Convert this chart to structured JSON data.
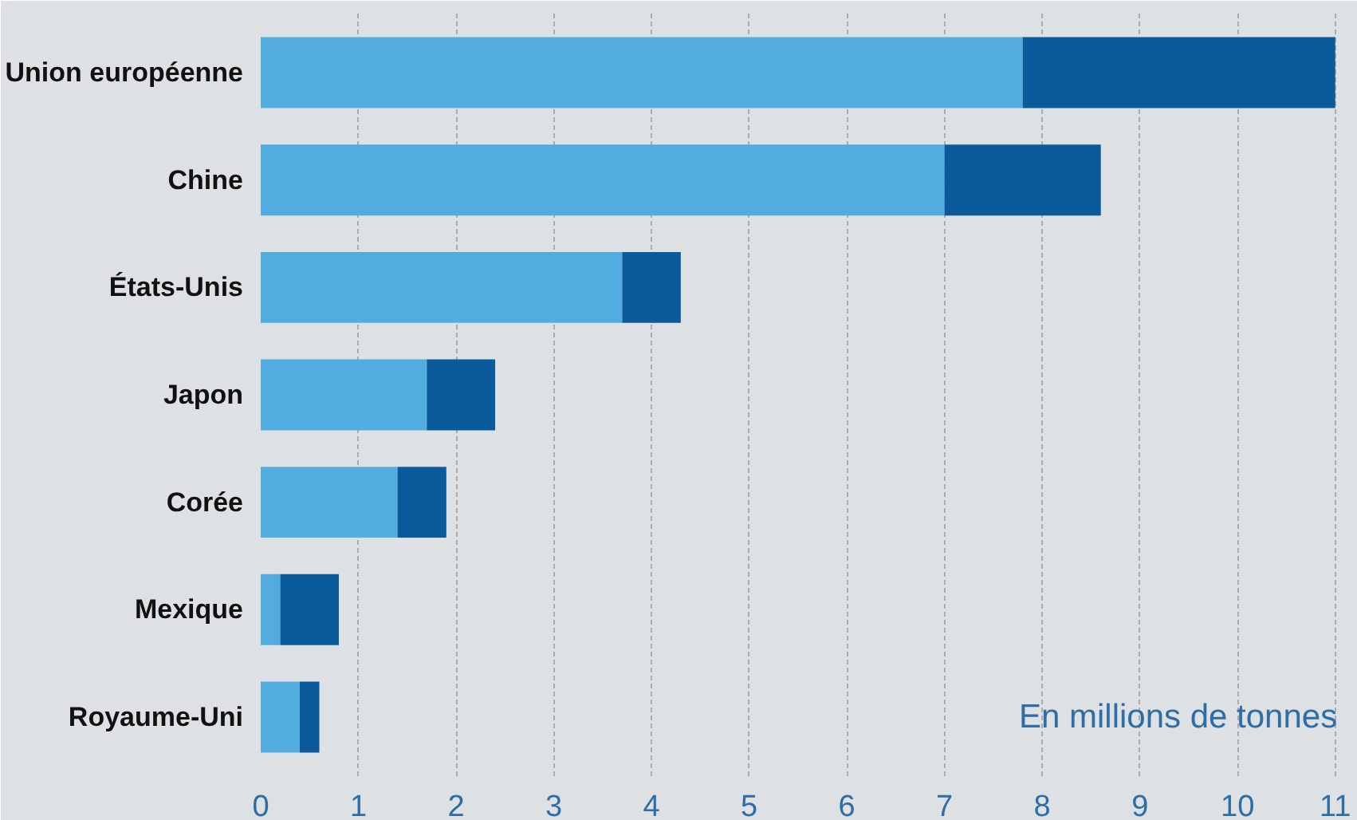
{
  "chart_data": {
    "type": "bar",
    "orientation": "horizontal",
    "stacked": true,
    "categories": [
      "Union européenne",
      "Chine",
      "États-Unis",
      "Japon",
      "Corée",
      "Mexique",
      "Royaume-Uni"
    ],
    "series": [
      {
        "color": "#52ace0",
        "values": [
          7.8,
          7.0,
          3.7,
          1.7,
          1.4,
          0.2,
          0.4
        ]
      },
      {
        "color": "#0b5a9c",
        "values": [
          3.2,
          1.6,
          0.6,
          0.7,
          0.5,
          0.6,
          0.2
        ]
      }
    ],
    "xlim": [
      0,
      11.1
    ],
    "xticks": [
      0,
      1,
      2,
      3,
      4,
      5,
      6,
      7,
      8,
      9,
      10,
      11
    ],
    "grid": "x",
    "annotations": [
      "En millions de tonnes"
    ]
  }
}
